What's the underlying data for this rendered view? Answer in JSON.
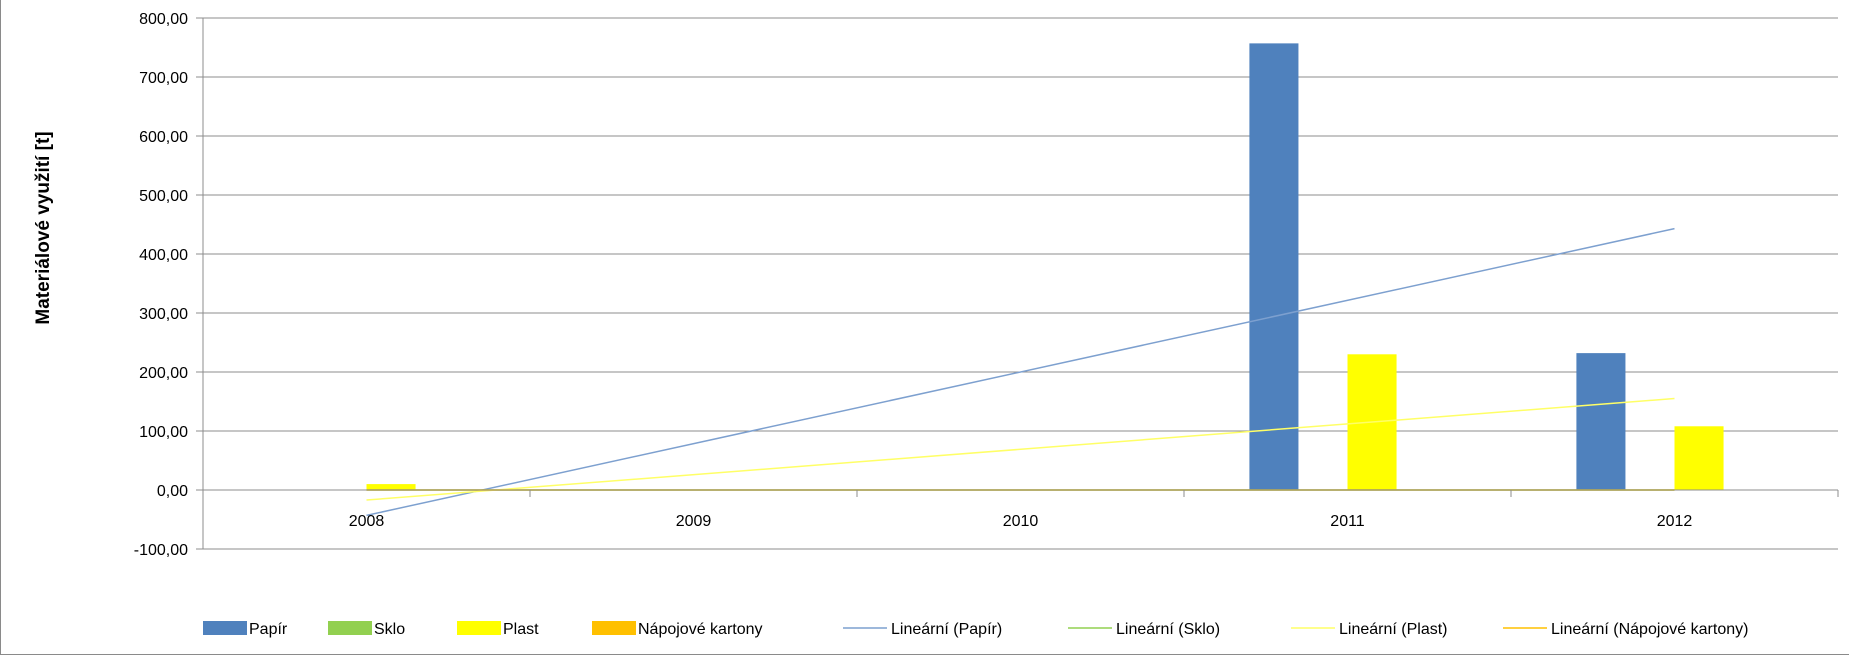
{
  "chart_data": {
    "type": "bar",
    "title": "",
    "xlabel": "",
    "ylabel": "Materiálové využití [t]",
    "categories": [
      "2008",
      "2009",
      "2010",
      "2011",
      "2012"
    ],
    "ylim": [
      -100,
      800
    ],
    "yticks": [
      "-100,00",
      "0,00",
      "100,00",
      "200,00",
      "300,00",
      "400,00",
      "500,00",
      "600,00",
      "700,00",
      "800,00"
    ],
    "grid": true,
    "legend_position": "bottom",
    "series": [
      {
        "name": "Papír",
        "color": "#4f81bd",
        "values": [
          0,
          0,
          0,
          757,
          232
        ]
      },
      {
        "name": "Sklo",
        "color": "#92d050",
        "values": [
          0,
          0,
          0,
          0,
          0
        ]
      },
      {
        "name": "Plast",
        "color": "#ffff00",
        "values": [
          10,
          0,
          0,
          230,
          108
        ]
      },
      {
        "name": "Nápojové kartony",
        "color": "#ffc000",
        "values": [
          0,
          0,
          0,
          0,
          0
        ]
      }
    ],
    "trendlines": [
      {
        "name": "Lineární (Papír)",
        "color": "#7da0cf",
        "start": -43,
        "end": 443
      },
      {
        "name": "Lineární (Sklo)",
        "color": "#92d050",
        "start": 0,
        "end": 0
      },
      {
        "name": "Lineární (Plast)",
        "color": "#ffff66",
        "start": -17,
        "end": 155
      },
      {
        "name": "Lineární (Nápojové kartony)",
        "color": "#ffc000",
        "start": 0,
        "end": 0
      }
    ]
  }
}
